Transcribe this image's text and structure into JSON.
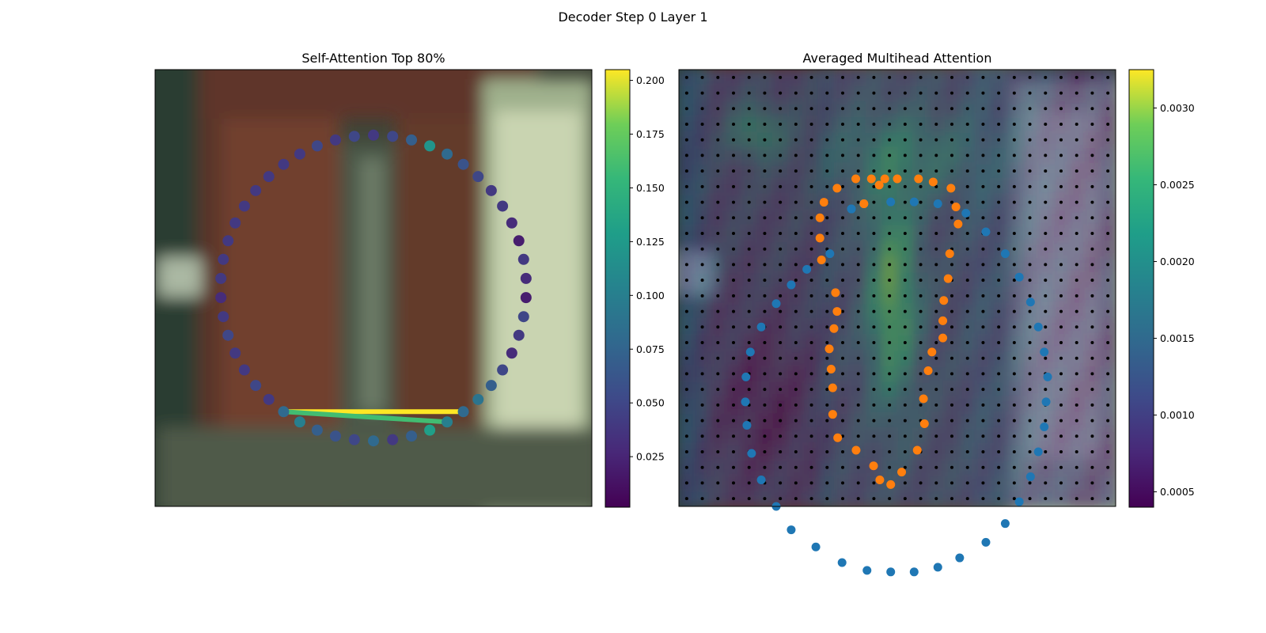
{
  "figure": {
    "suptitle": "Decoder Step 0 Layer 1"
  },
  "chart_data": [
    {
      "type": "scatter",
      "title": "Self-Attention Top 80%",
      "xlabel": "",
      "ylabel": "",
      "xlim": [
        0,
        56
      ],
      "ylim": [
        56,
        0
      ],
      "grid": false,
      "colormap": "viridis",
      "colorbar": {
        "range": [
          0.0015,
          0.205
        ],
        "ticks": [
          "0.025",
          "0.050",
          "0.075",
          "0.100",
          "0.125",
          "0.150",
          "0.175",
          "0.200"
        ]
      },
      "points": {
        "center": [
          28,
          28
        ],
        "radius": 19.6,
        "count": 50,
        "values": [
          0.04,
          0.05,
          0.07,
          0.12,
          0.08,
          0.06,
          0.05,
          0.04,
          0.04,
          0.03,
          0.02,
          0.04,
          0.03,
          0.02,
          0.05,
          0.04,
          0.03,
          0.05,
          0.07,
          0.09,
          0.08,
          0.1,
          0.13,
          0.07,
          0.04,
          0.08,
          0.05,
          0.06,
          0.07,
          0.1,
          0.08,
          0.04,
          0.05,
          0.04,
          0.04,
          0.05,
          0.04,
          0.03,
          0.04,
          0.04,
          0.04,
          0.04,
          0.04,
          0.04,
          0.04,
          0.04,
          0.04,
          0.05,
          0.04,
          0.05
        ]
      },
      "lines": [
        {
          "from_index": 30,
          "to_index": 20,
          "value": 0.205
        },
        {
          "from_index": 30,
          "to_index": 21,
          "value": 0.16
        }
      ]
    },
    {
      "type": "heatmap",
      "title": "Averaged Multihead Attention",
      "xlabel": "",
      "ylabel": "",
      "grid_cells": [
        28,
        28
      ],
      "colormap": "viridis",
      "colorbar": {
        "range": [
          0.0004,
          0.00325
        ],
        "ticks": [
          "0.0005",
          "0.0010",
          "0.0015",
          "0.0020",
          "0.0025",
          "0.0030"
        ]
      },
      "sample_points_per_side": 28,
      "series": [
        {
          "color": "#1f77b4",
          "points": [
            [
              11.06,
              8.93
            ],
            [
              11.84,
              8.6
            ],
            [
              13.58,
              8.48
            ],
            [
              15.08,
              8.48
            ],
            [
              16.6,
              8.6
            ],
            [
              18.4,
              9.2
            ],
            [
              19.68,
              10.4
            ],
            [
              20.92,
              11.8
            ],
            [
              21.82,
              13.3
            ],
            [
              22.54,
              14.9
            ],
            [
              23.04,
              16.5
            ],
            [
              23.42,
              18.1
            ],
            [
              23.64,
              19.7
            ],
            [
              23.54,
              21.3
            ],
            [
              23.42,
              22.9
            ],
            [
              23.04,
              24.5
            ],
            [
              22.54,
              26.1
            ],
            [
              21.82,
              27.7
            ],
            [
              20.92,
              29.1
            ],
            [
              19.68,
              30.3
            ],
            [
              18.0,
              31.3
            ],
            [
              16.6,
              31.9
            ],
            [
              15.08,
              32.2
            ],
            [
              13.58,
              32.2
            ],
            [
              12.06,
              32.1
            ],
            [
              10.46,
              31.6
            ],
            [
              8.78,
              30.6
            ],
            [
              7.2,
              29.5
            ],
            [
              6.24,
              28.0
            ],
            [
              5.28,
              26.3
            ],
            [
              4.66,
              24.6
            ],
            [
              4.36,
              22.8
            ],
            [
              4.26,
              21.3
            ],
            [
              4.3,
              19.7
            ],
            [
              4.58,
              18.1
            ],
            [
              5.28,
              16.5
            ],
            [
              6.24,
              15.0
            ],
            [
              7.2,
              13.8
            ],
            [
              8.2,
              12.8
            ],
            [
              9.68,
              11.8
            ],
            [
              11.06,
              8.93
            ]
          ]
        },
        {
          "color": "#ff7f0e",
          "points": [
            [
              11.86,
              8.6
            ],
            [
              12.84,
              7.4
            ],
            [
              14.0,
              7.0
            ],
            [
              15.36,
              7.0
            ],
            [
              16.3,
              7.2
            ],
            [
              17.44,
              7.6
            ],
            [
              17.76,
              8.8
            ],
            [
              17.9,
              9.9
            ],
            [
              17.36,
              11.8
            ],
            [
              17.26,
              13.4
            ],
            [
              16.98,
              14.8
            ],
            [
              16.92,
              16.1
            ],
            [
              16.92,
              17.2
            ],
            [
              16.22,
              18.1
            ],
            [
              15.98,
              19.3
            ],
            [
              15.68,
              21.1
            ],
            [
              15.74,
              22.7
            ],
            [
              15.28,
              24.4
            ],
            [
              14.28,
              25.8
            ],
            [
              13.58,
              26.6
            ],
            [
              12.88,
              26.3
            ],
            [
              12.48,
              25.4
            ],
            [
              11.36,
              24.4
            ],
            [
              10.18,
              23.6
            ],
            [
              9.86,
              22.1
            ],
            [
              9.86,
              20.4
            ],
            [
              9.76,
              19.2
            ],
            [
              9.64,
              17.9
            ],
            [
              9.94,
              16.6
            ],
            [
              10.14,
              15.5
            ],
            [
              10.04,
              14.3
            ],
            [
              9.14,
              12.2
            ],
            [
              9.04,
              10.8
            ],
            [
              9.04,
              9.5
            ],
            [
              9.3,
              8.5
            ],
            [
              10.14,
              7.6
            ],
            [
              11.34,
              7.0
            ],
            [
              12.34,
              7.0
            ],
            [
              13.2,
              7.0
            ],
            [
              11.86,
              8.6
            ]
          ]
        }
      ]
    }
  ]
}
